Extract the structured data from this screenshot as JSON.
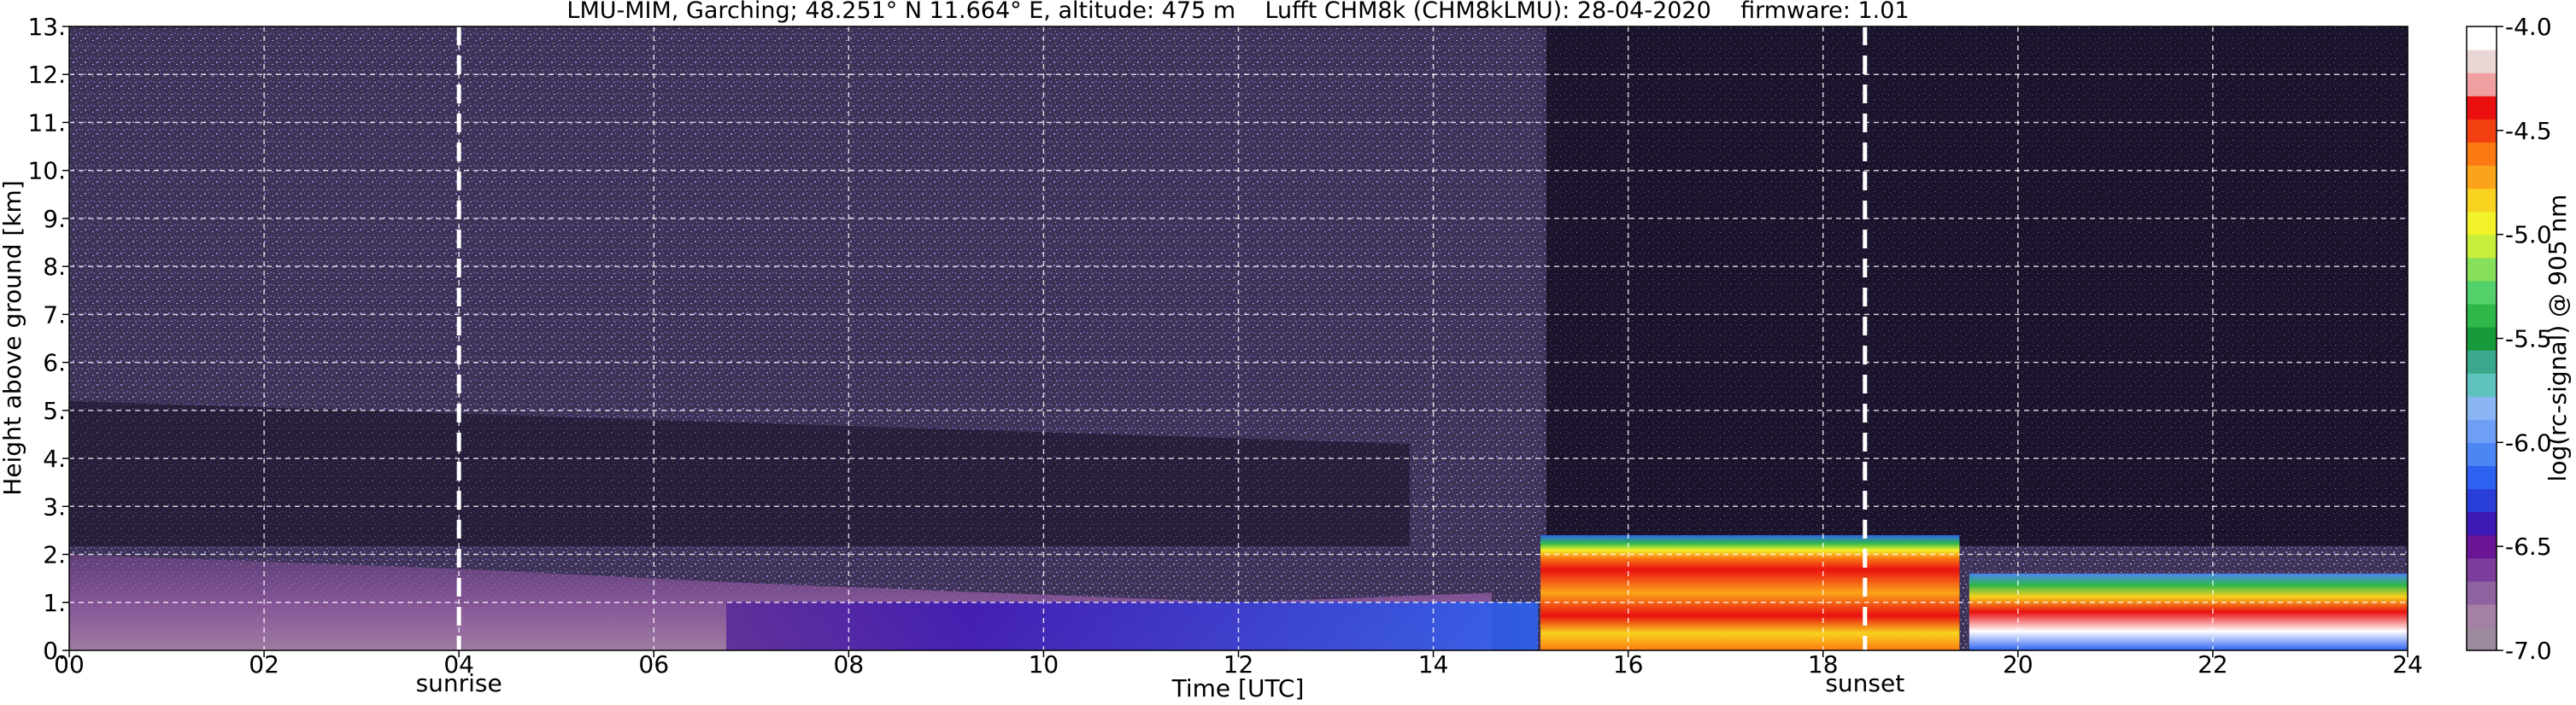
{
  "chart_data": {
    "type": "heatmap",
    "title": "LMU-MIM, Garching; 48.251° N 11.664° E, altitude: 475 m    Lufft CHM8k (CHM8kLMU): 28-04-2020    firmware: 1.01",
    "xlabel": "Time [UTC]",
    "ylabel": "Height above ground [km]",
    "colorbar_label": "log(rc-signal) @ 905 nm",
    "xlim": [
      0,
      24
    ],
    "ylim": [
      0,
      13
    ],
    "clim": [
      -7.0,
      -4.0
    ],
    "grid": true,
    "x_ticks": [
      0,
      2,
      4,
      6,
      8,
      10,
      12,
      14,
      16,
      18,
      20,
      22,
      24
    ],
    "x_tick_labels": [
      "00",
      "02",
      "04",
      "06",
      "08",
      "10",
      "12",
      "14",
      "16",
      "18",
      "20",
      "22",
      "24"
    ],
    "y_ticks": [
      0,
      1,
      2,
      3,
      4,
      5,
      6,
      7,
      8,
      9,
      10,
      11,
      12,
      13
    ],
    "y_tick_labels": [
      "0.",
      "1.",
      "2.",
      "3.",
      "4.",
      "5.",
      "6.",
      "7.",
      "8.",
      "9.",
      "10.",
      "11.",
      "12.",
      "13."
    ],
    "colorbar_ticks": [
      -7.0,
      -6.5,
      -6.0,
      -5.5,
      -5.0,
      -4.5,
      -4.0
    ],
    "colorbar_tick_labels": [
      "-7.0",
      "-6.5",
      "-6.0",
      "-5.5",
      "-5.0",
      "-4.5",
      "-4.0"
    ],
    "colorbar_colors": [
      "#9c8a9e",
      "#a47fa6",
      "#8f62a0",
      "#7c3c9b",
      "#6a1496",
      "#3c18b4",
      "#2a3fd8",
      "#2d62f0",
      "#4c86f5",
      "#6f9ef6",
      "#8ab6f4",
      "#5fc3c0",
      "#3aa88c",
      "#179a3a",
      "#2fb84a",
      "#52d06a",
      "#86e05c",
      "#c8ee3c",
      "#f2f22a",
      "#f8d21e",
      "#fba419",
      "#fb7a12",
      "#f24010",
      "#ea1010",
      "#f0a0a0",
      "#ebd6d6",
      "#ffffff"
    ],
    "events": [
      {
        "label": "sunrise",
        "time": 4.0
      },
      {
        "label": "sunset",
        "time": 18.43
      }
    ],
    "boundary_layer_top": [
      {
        "time": 0.0,
        "height": 2.0
      },
      {
        "time": 4.0,
        "height": 1.7
      },
      {
        "time": 7.0,
        "height": 1.4
      },
      {
        "time": 12.0,
        "height": 1.0
      },
      {
        "time": 14.6,
        "height": 1.2
      }
    ],
    "cloud_layers": [
      {
        "start": 15.1,
        "end": 19.4,
        "base": 0.0,
        "top": 2.4
      },
      {
        "start": 19.5,
        "end": 24.0,
        "base": 0.0,
        "top": 1.6
      }
    ],
    "signal_noise_floor_top": 13.0
  }
}
